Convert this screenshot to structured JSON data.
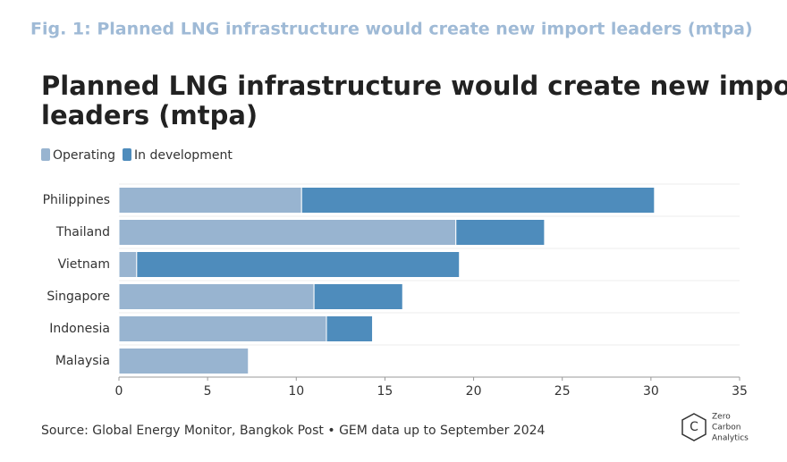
{
  "figure_caption": "Fig. 1: Planned LNG infrastructure would create new import leaders  (mtpa)",
  "logo": {
    "lines": [
      "Zero",
      "Carbon",
      "Analytics"
    ]
  },
  "chart_data": {
    "type": "stacked-barh",
    "title": "Planned LNG infrastructure would create new import leaders (mtpa)",
    "source": "Source: Global Energy Monitor, Bangkok Post • GEM data up to September 2024",
    "categories": [
      "Philippines",
      "Thailand",
      "Vietnam",
      "Singapore",
      "Indonesia",
      "Malaysia"
    ],
    "series": [
      {
        "name": "Operating",
        "color": "#98b4d0",
        "values": [
          10.3,
          19.0,
          1.0,
          11.0,
          11.7,
          7.3
        ]
      },
      {
        "name": "In development",
        "color": "#4e8cbc",
        "values": [
          19.9,
          5.0,
          18.2,
          5.0,
          2.6,
          0
        ]
      }
    ],
    "xlim": [
      0,
      35
    ],
    "xticks": [
      0,
      5,
      10,
      15,
      20,
      25,
      30,
      35
    ],
    "legend": "top-left"
  }
}
